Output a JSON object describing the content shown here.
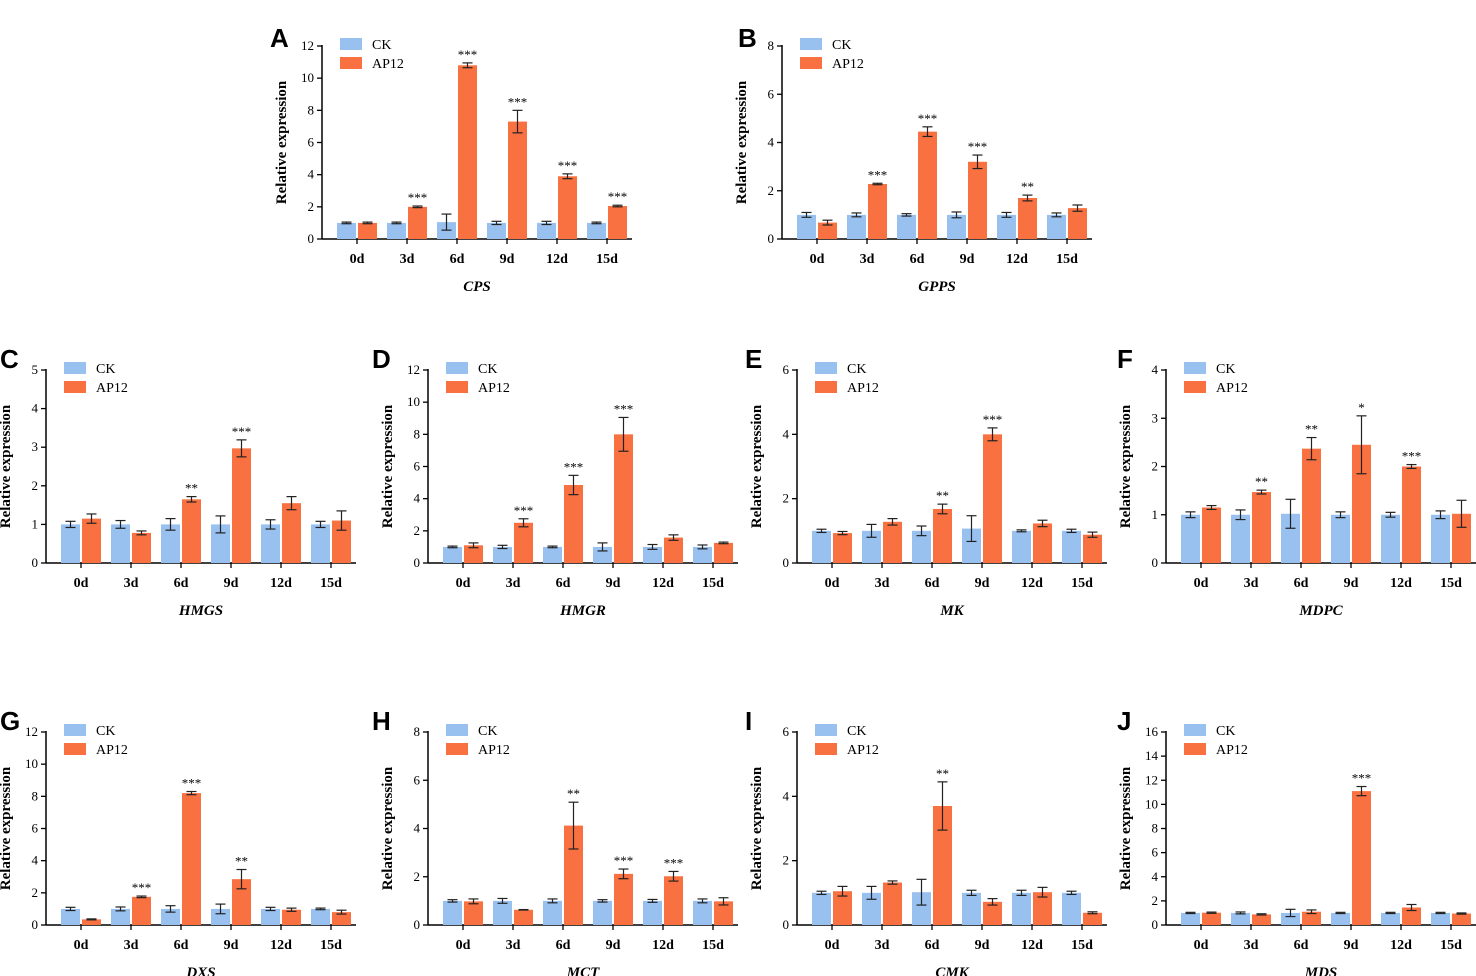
{
  "figure": {
    "colors": {
      "ck": "#99c1f0",
      "ap12": "#f97140",
      "axis": "#000000",
      "error": "#222222"
    },
    "legend": [
      "CK",
      "AP12"
    ]
  },
  "chart_data": [
    {
      "type": "bar",
      "panel": "A",
      "gene": "CPS",
      "ylabel": "Relative expression",
      "ylim": [
        0,
        12
      ],
      "yticks": [
        0,
        2,
        4,
        6,
        8,
        10,
        12
      ],
      "categories": [
        "0d",
        "3d",
        "6d",
        "9d",
        "12d",
        "15d"
      ],
      "series": [
        {
          "name": "CK",
          "values": [
            1.0,
            1.0,
            1.05,
            1.0,
            1.0,
            1.0
          ],
          "errors": [
            0.05,
            0.05,
            0.5,
            0.1,
            0.1,
            0.05
          ]
        },
        {
          "name": "AP12",
          "values": [
            1.0,
            2.0,
            10.8,
            7.3,
            3.9,
            2.05
          ],
          "errors": [
            0.05,
            0.05,
            0.15,
            0.7,
            0.15,
            0.05
          ]
        }
      ],
      "significance": [
        "",
        "***",
        "***",
        "***",
        "***",
        "***"
      ]
    },
    {
      "type": "bar",
      "panel": "B",
      "gene": "GPPS",
      "ylabel": "Relative expression",
      "ylim": [
        0,
        8
      ],
      "yticks": [
        0,
        2,
        4,
        6,
        8
      ],
      "categories": [
        "0d",
        "3d",
        "6d",
        "9d",
        "12d",
        "15d"
      ],
      "series": [
        {
          "name": "CK",
          "values": [
            1.0,
            1.0,
            1.0,
            1.0,
            1.0,
            1.0
          ],
          "errors": [
            0.1,
            0.08,
            0.05,
            0.12,
            0.1,
            0.08
          ]
        },
        {
          "name": "AP12",
          "values": [
            0.68,
            2.28,
            4.45,
            3.2,
            1.7,
            1.28
          ],
          "errors": [
            0.1,
            0.03,
            0.2,
            0.28,
            0.12,
            0.13
          ]
        }
      ],
      "significance": [
        "",
        "***",
        "***",
        "***",
        "**",
        ""
      ]
    },
    {
      "type": "bar",
      "panel": "C",
      "gene": "HMGS",
      "ylabel": "Relative expression",
      "ylim": [
        0,
        5
      ],
      "yticks": [
        0,
        1,
        2,
        3,
        4,
        5
      ],
      "categories": [
        "0d",
        "3d",
        "6d",
        "9d",
        "12d",
        "15d"
      ],
      "series": [
        {
          "name": "CK",
          "values": [
            1.0,
            1.0,
            1.0,
            1.0,
            1.0,
            1.0
          ],
          "errors": [
            0.08,
            0.1,
            0.15,
            0.22,
            0.12,
            0.08
          ]
        },
        {
          "name": "AP12",
          "values": [
            1.15,
            0.78,
            1.65,
            2.97,
            1.55,
            1.1
          ],
          "errors": [
            0.12,
            0.05,
            0.07,
            0.22,
            0.17,
            0.25
          ]
        }
      ],
      "significance": [
        "",
        "",
        "**",
        "***",
        "",
        ""
      ]
    },
    {
      "type": "bar",
      "panel": "D",
      "gene": "HMGR",
      "ylabel": "Relative expression",
      "ylim": [
        0,
        12
      ],
      "yticks": [
        0,
        2,
        4,
        6,
        8,
        10,
        12
      ],
      "categories": [
        "0d",
        "3d",
        "6d",
        "9d",
        "12d",
        "15d"
      ],
      "series": [
        {
          "name": "CK",
          "values": [
            1.0,
            1.0,
            1.0,
            1.0,
            1.0,
            1.0
          ],
          "errors": [
            0.05,
            0.1,
            0.05,
            0.25,
            0.15,
            0.12
          ]
        },
        {
          "name": "AP12",
          "values": [
            1.1,
            2.5,
            4.85,
            8.0,
            1.58,
            1.25
          ],
          "errors": [
            0.15,
            0.25,
            0.6,
            1.05,
            0.17,
            0.05
          ]
        }
      ],
      "significance": [
        "",
        "***",
        "***",
        "***",
        "",
        ""
      ]
    },
    {
      "type": "bar",
      "panel": "E",
      "gene": "MK",
      "ylabel": "Relative expression",
      "ylim": [
        0,
        6
      ],
      "yticks": [
        0,
        2,
        4,
        6
      ],
      "categories": [
        "0d",
        "3d",
        "6d",
        "9d",
        "12d",
        "15d"
      ],
      "series": [
        {
          "name": "CK",
          "values": [
            1.0,
            1.0,
            1.0,
            1.07,
            1.0,
            1.0
          ],
          "errors": [
            0.05,
            0.2,
            0.15,
            0.4,
            0.03,
            0.05
          ]
        },
        {
          "name": "AP12",
          "values": [
            0.93,
            1.28,
            1.68,
            4.0,
            1.23,
            0.88
          ],
          "errors": [
            0.05,
            0.1,
            0.15,
            0.2,
            0.1,
            0.08
          ]
        }
      ],
      "significance": [
        "",
        "",
        "**",
        "***",
        "",
        ""
      ]
    },
    {
      "type": "bar",
      "panel": "F",
      "gene": "MDPC",
      "ylabel": "Relative expression",
      "ylim": [
        0,
        4
      ],
      "yticks": [
        0,
        1,
        2,
        3,
        4
      ],
      "categories": [
        "0d",
        "3d",
        "6d",
        "9d",
        "12d",
        "15d"
      ],
      "series": [
        {
          "name": "CK",
          "values": [
            1.0,
            1.0,
            1.02,
            1.0,
            1.0,
            1.0
          ],
          "errors": [
            0.06,
            0.1,
            0.3,
            0.06,
            0.05,
            0.08
          ]
        },
        {
          "name": "AP12",
          "values": [
            1.15,
            1.47,
            2.37,
            2.45,
            2.0,
            1.02
          ],
          "errors": [
            0.04,
            0.04,
            0.23,
            0.6,
            0.04,
            0.28
          ]
        }
      ],
      "significance": [
        "",
        "**",
        "**",
        "*",
        "***",
        ""
      ]
    },
    {
      "type": "bar",
      "panel": "G",
      "gene": "DXS",
      "ylabel": "Relative expression",
      "ylim": [
        0,
        12
      ],
      "yticks": [
        0,
        2,
        4,
        6,
        8,
        10,
        12
      ],
      "categories": [
        "0d",
        "3d",
        "6d",
        "9d",
        "12d",
        "15d"
      ],
      "series": [
        {
          "name": "CK",
          "values": [
            1.0,
            1.0,
            1.0,
            1.0,
            1.0,
            1.0
          ],
          "errors": [
            0.1,
            0.12,
            0.2,
            0.3,
            0.1,
            0.05
          ]
        },
        {
          "name": "AP12",
          "values": [
            0.35,
            1.75,
            8.2,
            2.85,
            0.95,
            0.8
          ],
          "errors": [
            0.03,
            0.05,
            0.1,
            0.6,
            0.1,
            0.12
          ]
        }
      ],
      "significance": [
        "",
        "***",
        "***",
        "**",
        "",
        ""
      ]
    },
    {
      "type": "bar",
      "panel": "H",
      "gene": "MCT",
      "ylabel": "Relative expression",
      "ylim": [
        0,
        8
      ],
      "yticks": [
        0,
        2,
        4,
        6,
        8
      ],
      "categories": [
        "0d",
        "3d",
        "6d",
        "9d",
        "12d",
        "15d"
      ],
      "series": [
        {
          "name": "CK",
          "values": [
            1.0,
            1.0,
            1.0,
            1.0,
            1.0,
            1.0
          ],
          "errors": [
            0.05,
            0.1,
            0.08,
            0.05,
            0.06,
            0.08
          ]
        },
        {
          "name": "AP12",
          "values": [
            0.98,
            0.63,
            4.12,
            2.12,
            2.02,
            0.98
          ],
          "errors": [
            0.1,
            0.01,
            0.97,
            0.2,
            0.2,
            0.15
          ]
        }
      ],
      "significance": [
        "",
        "",
        "**",
        "***",
        "***",
        ""
      ]
    },
    {
      "type": "bar",
      "panel": "I",
      "gene": "CMK",
      "ylabel": "Relative expression",
      "ylim": [
        0,
        6
      ],
      "yticks": [
        0,
        2,
        4,
        6
      ],
      "categories": [
        "0d",
        "3d",
        "6d",
        "9d",
        "12d",
        "15d"
      ],
      "series": [
        {
          "name": "CK",
          "values": [
            1.0,
            1.0,
            1.02,
            1.0,
            1.0,
            1.0
          ],
          "errors": [
            0.05,
            0.2,
            0.4,
            0.08,
            0.08,
            0.05
          ]
        },
        {
          "name": "AP12",
          "values": [
            1.05,
            1.32,
            3.7,
            0.72,
            1.02,
            0.38
          ],
          "errors": [
            0.15,
            0.05,
            0.75,
            0.1,
            0.15,
            0.03
          ]
        }
      ],
      "significance": [
        "",
        "",
        "**",
        "",
        "",
        ""
      ]
    },
    {
      "type": "bar",
      "panel": "J",
      "gene": "MDS",
      "ylabel": "Relative expression",
      "ylim": [
        0,
        16
      ],
      "yticks": [
        0,
        2,
        4,
        6,
        8,
        10,
        12,
        14,
        16
      ],
      "categories": [
        "0d",
        "3d",
        "6d",
        "9d",
        "12d",
        "15d"
      ],
      "series": [
        {
          "name": "CK",
          "values": [
            1.0,
            1.0,
            1.0,
            1.0,
            1.0,
            1.0
          ],
          "errors": [
            0.05,
            0.08,
            0.3,
            0.05,
            0.05,
            0.05
          ]
        },
        {
          "name": "AP12",
          "values": [
            1.02,
            0.88,
            1.1,
            11.1,
            1.45,
            0.95
          ],
          "errors": [
            0.05,
            0.05,
            0.15,
            0.38,
            0.25,
            0.05
          ]
        }
      ],
      "significance": [
        "",
        "",
        "",
        "***",
        "",
        ""
      ]
    }
  ]
}
